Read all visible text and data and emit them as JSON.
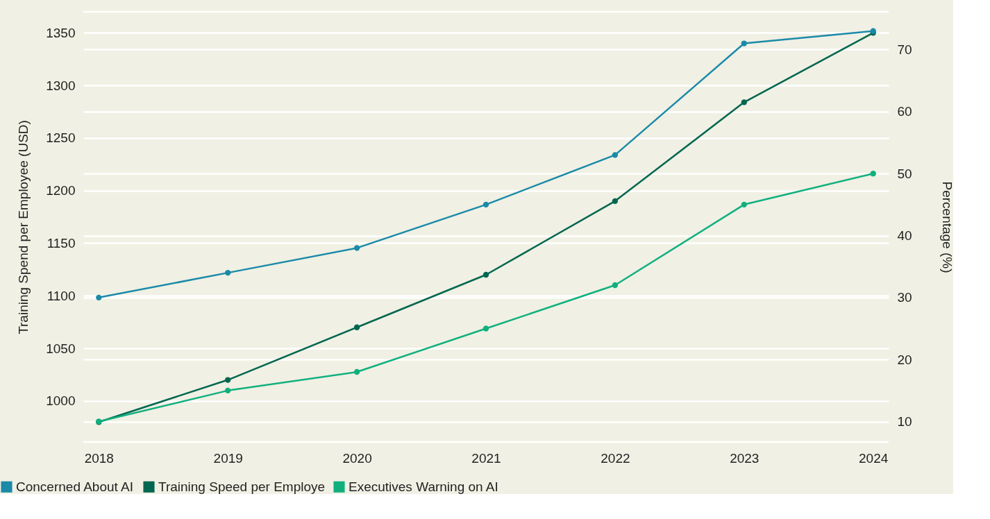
{
  "chart_data": {
    "type": "line",
    "categories": [
      "2018",
      "2019",
      "2020",
      "2021",
      "2022",
      "2023",
      "2024"
    ],
    "series": [
      {
        "name": "Concerned About AI",
        "color": "#1a8aa8",
        "axis": "y2",
        "values": [
          30,
          34,
          38,
          45,
          53,
          71,
          73
        ]
      },
      {
        "name": "Training Speed per Employe",
        "color": "#00664f",
        "axis": "y",
        "values": [
          980,
          1020,
          1070,
          1120,
          1190,
          1284,
          1350
        ]
      },
      {
        "name": "Executives Warning on AI",
        "color": "#10b07e",
        "axis": "y2",
        "values": [
          10,
          15,
          18,
          25,
          32,
          45,
          50
        ]
      }
    ],
    "ylabel": "Training Spend per Employee (USD)",
    "y2label": "Percentage (%)",
    "ylim": [
      961,
      1370
    ],
    "yticks": [
      1000,
      1050,
      1100,
      1150,
      1200,
      1250,
      1300,
      1350
    ],
    "y2lim": [
      6.7,
      76.1
    ],
    "y2ticks": [
      10,
      20,
      30,
      40,
      50,
      60,
      70
    ],
    "grid": true,
    "legend": "bottom left",
    "marker": "circle",
    "line_style": "solid"
  }
}
